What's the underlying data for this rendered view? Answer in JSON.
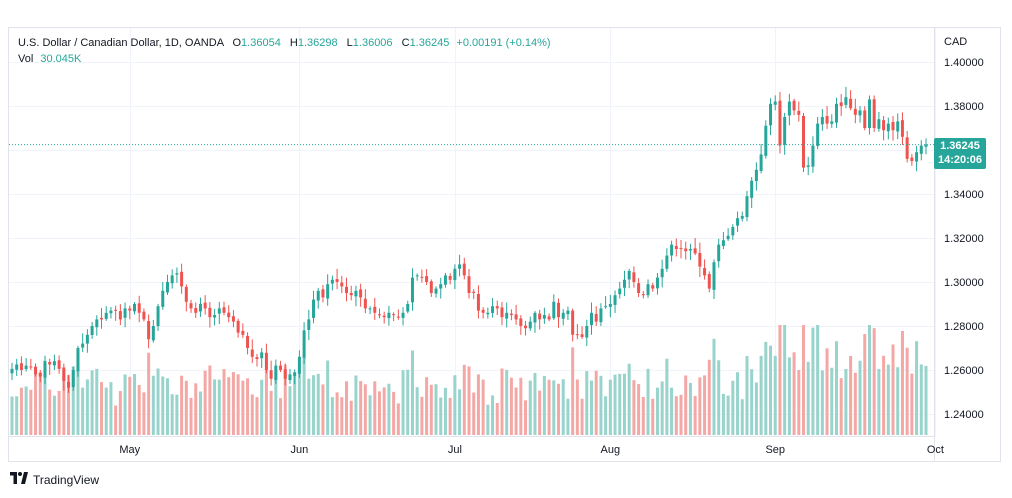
{
  "header": {
    "symbol": "U.S. Dollar / Canadian Dollar, 1D, OANDA",
    "open_label": "O",
    "open": "1.36054",
    "high_label": "H",
    "high": "1.36298",
    "low_label": "L",
    "low": "1.36006",
    "close_label": "C",
    "close": "1.36245",
    "change": "+0.00191 (+0.14%)",
    "vol_label": "Vol",
    "vol": "30.045K"
  },
  "last_price": {
    "price": "1.36245",
    "countdown": "14:20:06"
  },
  "footer": {
    "brand": "TradingView"
  },
  "colors": {
    "up": "#26a69a",
    "down": "#ef5350",
    "vol_up": "#98d3cc",
    "vol_down": "#f4a8a6",
    "grid": "#f0f3fa"
  },
  "chart_data": {
    "type": "candlestick",
    "currency_label": "CAD",
    "y_ticks": [
      "1.40000",
      "1.38000",
      "1.36000",
      "1.34000",
      "1.32000",
      "1.30000",
      "1.28000",
      "1.26000",
      "1.24000"
    ],
    "ylim": [
      1.232,
      1.4063
    ],
    "x_ticks": [
      {
        "label": "May",
        "index": 25
      },
      {
        "label": "Jun",
        "index": 61
      },
      {
        "label": "Jul",
        "index": 94
      },
      {
        "label": "Aug",
        "index": 127
      },
      {
        "label": "Sep",
        "index": 162
      },
      {
        "label": "Oct",
        "index": 196
      }
    ],
    "last_close": 1.36245,
    "close": [
      1.2605,
      1.2625,
      1.26,
      1.262,
      1.2615,
      1.258,
      1.257,
      1.264,
      1.2625,
      1.264,
      1.2605,
      1.255,
      1.252,
      1.26,
      1.27,
      1.272,
      1.276,
      1.28,
      1.283,
      1.283,
      1.286,
      1.287,
      1.287,
      1.283,
      1.288,
      1.287,
      1.29,
      1.286,
      1.283,
      1.274,
      1.28,
      1.289,
      1.296,
      1.3,
      1.303,
      1.304,
      1.298,
      1.291,
      1.288,
      1.286,
      1.29,
      1.288,
      1.284,
      1.285,
      1.288,
      1.286,
      1.284,
      1.282,
      1.277,
      1.276,
      1.27,
      1.266,
      1.265,
      1.268,
      1.26,
      1.256,
      1.262,
      1.26,
      1.256,
      1.258,
      1.259,
      1.266,
      1.278,
      1.283,
      1.292,
      1.296,
      1.293,
      1.299,
      1.301,
      1.3,
      1.298,
      1.295,
      1.294,
      1.296,
      1.293,
      1.288,
      1.288,
      1.286,
      1.285,
      1.284,
      1.286,
      1.285,
      1.284,
      1.286,
      1.29,
      1.302,
      1.303,
      1.302,
      1.3,
      1.295,
      1.297,
      1.299,
      1.303,
      1.301,
      1.306,
      1.308,
      1.303,
      1.295,
      1.295,
      1.287,
      1.286,
      1.286,
      1.289,
      1.288,
      1.284,
      1.286,
      1.285,
      1.283,
      1.28,
      1.279,
      1.282,
      1.286,
      1.283,
      1.285,
      1.283,
      1.291,
      1.284,
      1.286,
      1.287,
      1.276,
      1.276,
      1.275,
      1.28,
      1.286,
      1.282,
      1.288,
      1.289,
      1.29,
      1.294,
      1.297,
      1.301,
      1.305,
      1.3,
      1.295,
      1.294,
      1.299,
      1.297,
      1.302,
      1.306,
      1.312,
      1.317,
      1.315,
      1.315,
      1.314,
      1.315,
      1.313,
      1.307,
      1.303,
      1.297,
      1.309,
      1.317,
      1.319,
      1.321,
      1.325,
      1.329,
      1.33,
      1.339,
      1.346,
      1.351,
      1.358,
      1.371,
      1.381,
      1.382,
      1.362,
      1.375,
      1.382,
      1.378,
      1.376,
      1.352,
      1.353,
      1.362,
      1.372,
      1.375,
      1.372,
      1.373,
      1.381,
      1.38,
      1.384,
      1.379,
      1.376,
      1.378,
      1.37,
      1.383,
      1.37,
      1.374,
      1.369,
      1.372,
      1.369,
      1.373,
      1.366,
      1.356,
      1.355,
      1.359,
      1.362,
      1.3625
    ]
  }
}
